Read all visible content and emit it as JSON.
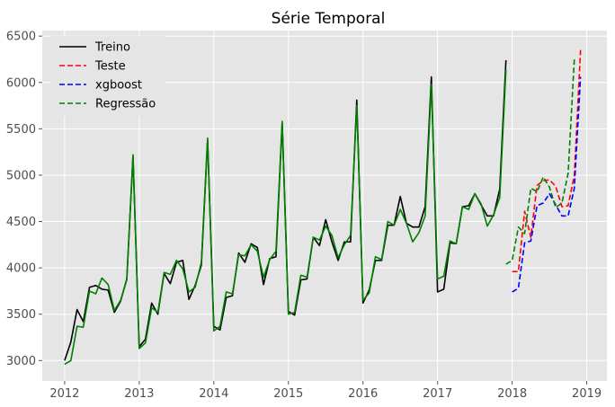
{
  "chart_data": {
    "type": "line",
    "title": "Série Temporal",
    "xlabel": "",
    "ylabel": "",
    "xlim": [
      2011.7,
      2019.27
    ],
    "ylim": [
      2780,
      6560
    ],
    "x_ticks": [
      2012,
      2013,
      2014,
      2015,
      2016,
      2017,
      2018,
      2019
    ],
    "x_tick_labels": [
      "2012",
      "2013",
      "2014",
      "2015",
      "2016",
      "2017",
      "2018",
      "2019"
    ],
    "y_ticks": [
      3000,
      3500,
      4000,
      4500,
      5000,
      5500,
      6000,
      6500
    ],
    "y_tick_labels": [
      "3000",
      "3500",
      "4000",
      "4500",
      "5000",
      "5500",
      "6000",
      "6500"
    ],
    "grid": true,
    "legend_position": "top-left",
    "series": [
      {
        "name": "Treino",
        "color": "#000000",
        "dash": "solid",
        "x_start": 2012.0,
        "x_step": 0.08333,
        "values": [
          3000,
          3200,
          3550,
          3420,
          3790,
          3810,
          3770,
          3760,
          3520,
          3640,
          3880,
          5200,
          3150,
          3230,
          3620,
          3500,
          3940,
          3830,
          4060,
          4080,
          3660,
          3810,
          4030,
          5380,
          3370,
          3330,
          3680,
          3700,
          4160,
          4060,
          4260,
          4220,
          3820,
          4100,
          4120,
          5560,
          3530,
          3490,
          3870,
          3880,
          4330,
          4240,
          4520,
          4280,
          4080,
          4280,
          4280,
          5810,
          3620,
          3760,
          4080,
          4080,
          4460,
          4460,
          4770,
          4480,
          4440,
          4440,
          4660,
          6060,
          3740,
          3770,
          4270,
          4260,
          4660,
          4670,
          4800,
          4680,
          4560,
          4560,
          4850,
          6240
        ]
      },
      {
        "name": "Teste",
        "color": "#ff0000",
        "dash": "dashed",
        "x_start": 2018.0,
        "x_step": 0.08333,
        "values": [
          3960,
          3960,
          4610,
          4330,
          4890,
          4940,
          4950,
          4880,
          4660,
          4670,
          5000,
          6350
        ]
      },
      {
        "name": "xgboost",
        "color": "#0000ff",
        "dash": "dashed",
        "x_start": 2018.0,
        "x_step": 0.08333,
        "values": [
          3740,
          3780,
          4270,
          4290,
          4670,
          4700,
          4800,
          4680,
          4560,
          4560,
          4860,
          6060
        ]
      },
      {
        "name": "Regressão",
        "color": "#008000",
        "dash": "dashed",
        "x_start": 2017.917,
        "x_step": 0.08333,
        "values": [
          4040,
          4080,
          4440,
          4370,
          4860,
          4820,
          4980,
          4870,
          4650,
          4700,
          5020,
          6260
        ]
      },
      {
        "name": "",
        "color": "#008000",
        "dash": "solid",
        "x_start": 2012.0,
        "x_step": 0.08333,
        "values": [
          2960,
          3000,
          3370,
          3360,
          3750,
          3720,
          3890,
          3820,
          3540,
          3650,
          3870,
          5220,
          3130,
          3190,
          3570,
          3520,
          3950,
          3930,
          4080,
          3990,
          3740,
          3790,
          4060,
          5400,
          3320,
          3370,
          3740,
          3720,
          4140,
          4130,
          4250,
          4180,
          3900,
          4090,
          4180,
          5580,
          3500,
          3520,
          3920,
          3900,
          4330,
          4300,
          4450,
          4350,
          4110,
          4250,
          4350,
          5750,
          3650,
          3730,
          4120,
          4090,
          4500,
          4460,
          4630,
          4480,
          4280,
          4380,
          4560,
          5980,
          3880,
          3910,
          4290,
          4260,
          4660,
          4630,
          4800,
          4690,
          4450,
          4570,
          4760,
          6140
        ]
      }
    ]
  }
}
